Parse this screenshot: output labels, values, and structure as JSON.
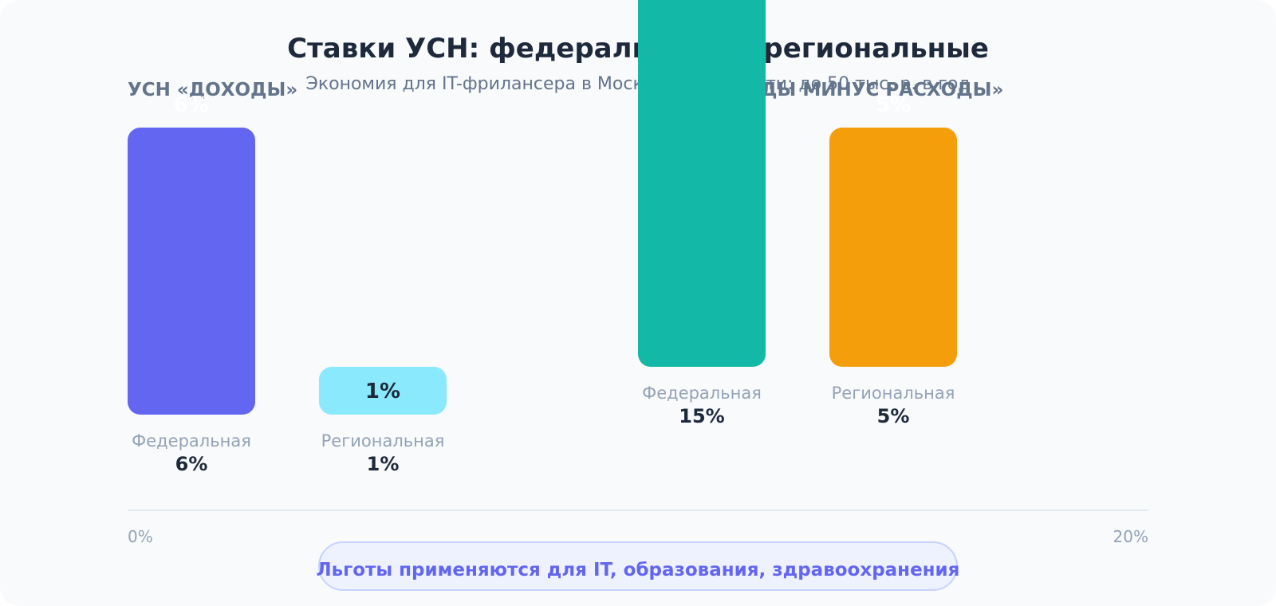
{
  "chart_data": {
    "type": "bar",
    "title": "Ставки УСН: федеральные vs региональные",
    "subtitle": "Экономия для IT-фрилансера в Московской области: до 50 тыс. р. в год",
    "groups": [
      {
        "name": "УСН «ДОХОДЫ»",
        "categories": [
          "Федеральная",
          "Региональная"
        ],
        "values": [
          6,
          1
        ],
        "value_labels": [
          "6%",
          "1%"
        ],
        "colors": [
          "#6366f1",
          "#8be9fd"
        ]
      },
      {
        "name": "УСН «ДОХОДЫ МИНУС РАСХОДЫ»",
        "categories": [
          "Федеральная",
          "Региональная"
        ],
        "values": [
          15,
          5
        ],
        "value_labels": [
          "15%",
          "5%"
        ],
        "colors": [
          "#14b8a6",
          "#f59e0b"
        ]
      }
    ],
    "axis": {
      "min_label": "0%",
      "max_label": "20%"
    },
    "footnote": "Льготы применяются для IT, образования, здравоохранения"
  },
  "colors": {
    "title": "#1e293b",
    "subtitle": "#64748b",
    "group_label": "#64748b",
    "category_label": "#94a3b8",
    "value_text": "#1e293b",
    "inside_light_text": "#ffffff",
    "axis_line": "#e2e8f0",
    "footnote_text": "#6366f1",
    "footnote_bg": "#eef2ff",
    "footnote_border": "#c7d2fe"
  }
}
